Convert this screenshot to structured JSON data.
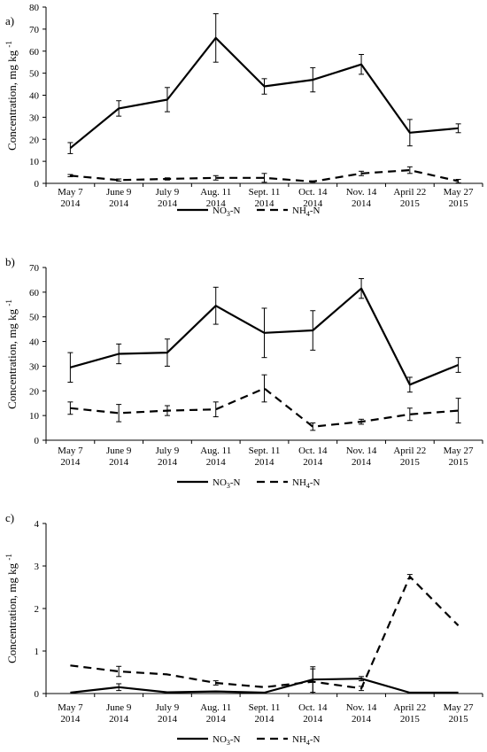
{
  "chart_data": [
    {
      "type": "line",
      "panel_label": "a)",
      "ylabel": "Concentration,  mg kg",
      "ylabel_sup": "-1",
      "ylim": [
        0,
        80
      ],
      "yticks": [
        "0",
        "10",
        "20",
        "30",
        "40",
        "50",
        "60",
        "70",
        "80"
      ],
      "grid": false,
      "categories": [
        [
          "May 7",
          "2014"
        ],
        [
          "June 9",
          "2014"
        ],
        [
          "July 9",
          "2014"
        ],
        [
          "Aug. 11",
          "2014"
        ],
        [
          "Sept. 11",
          "2014"
        ],
        [
          "Oct. 14",
          "2014"
        ],
        [
          "Nov. 14",
          "2014"
        ],
        [
          "April 22",
          "2015"
        ],
        [
          "May 27",
          "2015"
        ]
      ],
      "series": [
        {
          "name": "NO3-N",
          "name_main": "NO",
          "name_sub": "3",
          "name_tail": "-N",
          "style": "solid",
          "values": [
            16,
            34,
            38,
            66,
            44,
            47,
            54,
            23,
            25
          ],
          "errors": [
            2.5,
            3.5,
            5.5,
            11,
            3.5,
            5.5,
            4.5,
            6,
            2
          ]
        },
        {
          "name": "NH4-N",
          "name_main": "NH",
          "name_sub": "4",
          "name_tail": "-N",
          "style": "dashed",
          "values": [
            3.5,
            1.5,
            2.0,
            2.5,
            2.5,
            0.8,
            4.5,
            6.0,
            1.0
          ],
          "errors": [
            0.5,
            0.5,
            0.5,
            1.0,
            2.0,
            0.3,
            1.0,
            1.5,
            0.8
          ]
        }
      ],
      "legend_position": "bottom"
    },
    {
      "type": "line",
      "panel_label": "b)",
      "ylabel": "Concentration,  mg kg",
      "ylabel_sup": "-1",
      "ylim": [
        0,
        70
      ],
      "yticks": [
        "0",
        "10",
        "20",
        "30",
        "40",
        "50",
        "60",
        "70"
      ],
      "grid": false,
      "categories": [
        [
          "May 7",
          "2014"
        ],
        [
          "June 9",
          "2014"
        ],
        [
          "July 9",
          "2014"
        ],
        [
          "Aug. 11",
          "2014"
        ],
        [
          "Sept. 11",
          "2014"
        ],
        [
          "Oct. 14",
          "2014"
        ],
        [
          "Nov. 14",
          "2014"
        ],
        [
          "April 22",
          "2015"
        ],
        [
          "May 27",
          "2015"
        ]
      ],
      "series": [
        {
          "name": "NO3-N",
          "name_main": "NO",
          "name_sub": "3",
          "name_tail": "-N",
          "style": "solid",
          "values": [
            29.5,
            35,
            35.5,
            54.5,
            43.5,
            44.5,
            61.5,
            22.5,
            30.5
          ],
          "errors": [
            6,
            4,
            5.5,
            7.5,
            10,
            8,
            4,
            3,
            3
          ]
        },
        {
          "name": "NH4-N",
          "name_main": "NH",
          "name_sub": "4",
          "name_tail": "-N",
          "style": "dashed",
          "values": [
            13,
            11,
            12,
            12.5,
            21,
            5.5,
            7.5,
            10.5,
            12
          ],
          "errors": [
            2.5,
            3.5,
            2,
            3,
            5.5,
            1.5,
            1,
            2.5,
            5
          ]
        }
      ],
      "legend_position": "bottom"
    },
    {
      "type": "line",
      "panel_label": "c)",
      "ylabel": "Concentration,  mg kg",
      "ylabel_sup": "-1",
      "ylim": [
        0,
        4
      ],
      "yticks": [
        "0",
        "1",
        "2",
        "3",
        "4"
      ],
      "grid": false,
      "categories": [
        [
          "May 7",
          "2014"
        ],
        [
          "June 9",
          "2014"
        ],
        [
          "July 9",
          "2014"
        ],
        [
          "Aug. 11",
          "2014"
        ],
        [
          "Sept. 11",
          "2014"
        ],
        [
          "Oct. 14",
          "2014"
        ],
        [
          "Nov. 14",
          "2014"
        ],
        [
          "April 22",
          "2015"
        ],
        [
          "May 27",
          "2015"
        ]
      ],
      "series": [
        {
          "name": "NO3-N",
          "name_main": "NO",
          "name_sub": "3",
          "name_tail": "-N",
          "style": "solid",
          "values": [
            0.02,
            0.15,
            0.03,
            0.05,
            0.02,
            0.33,
            0.35,
            0.02,
            0.02
          ],
          "errors": [
            0,
            0.08,
            0,
            0,
            0,
            0.3,
            0.05,
            0,
            0
          ]
        },
        {
          "name": "NH4-N",
          "name_main": "NH",
          "name_sub": "4",
          "name_tail": "-N",
          "style": "dashed",
          "values": [
            0.66,
            0.52,
            0.45,
            0.25,
            0.15,
            0.28,
            0.12,
            2.75,
            1.6
          ],
          "errors": [
            0,
            0.12,
            0,
            0.05,
            0,
            0.3,
            0.05,
            0.05,
            0
          ]
        }
      ],
      "legend_position": "bottom"
    }
  ]
}
